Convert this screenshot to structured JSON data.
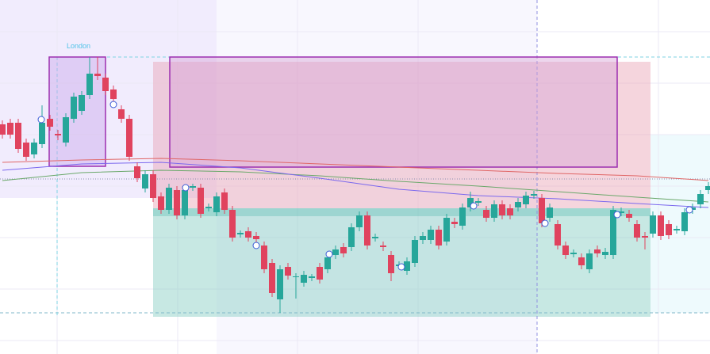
{
  "chart_data": {
    "type": "candlestick",
    "annotation": "London",
    "ylim": [
      0,
      447
    ],
    "up_color": "#26a69a",
    "down_color": "#e0435e",
    "ohlc": [
      [
        290,
        295,
        272,
        277
      ],
      [
        292,
        297,
        272,
        277
      ],
      [
        292,
        297,
        254,
        259
      ],
      [
        267,
        272,
        244,
        249
      ],
      [
        252,
        272,
        247,
        267
      ],
      [
        265,
        314,
        260,
        292
      ],
      [
        297,
        302,
        282,
        287
      ],
      [
        278,
        283,
        270,
        276
      ],
      [
        267,
        304,
        262,
        299
      ],
      [
        297,
        330,
        292,
        325
      ],
      [
        307,
        332,
        302,
        327
      ],
      [
        327,
        375,
        322,
        354
      ],
      [
        354,
        375,
        346,
        351
      ],
      [
        349,
        354,
        327,
        332
      ],
      [
        334,
        339,
        317,
        322
      ],
      [
        309,
        314,
        292,
        297
      ],
      [
        297,
        302,
        244,
        249
      ],
      [
        237,
        242,
        217,
        222
      ],
      [
        209,
        232,
        204,
        227
      ],
      [
        227,
        232,
        192,
        197
      ],
      [
        199,
        204,
        177,
        182
      ],
      [
        182,
        215,
        177,
        210
      ],
      [
        207,
        212,
        170,
        175
      ],
      [
        175,
        212,
        170,
        207
      ],
      [
        210,
        215,
        206,
        212
      ],
      [
        210,
        215,
        172,
        177
      ],
      [
        184,
        190,
        180,
        186
      ],
      [
        179,
        204,
        174,
        199
      ],
      [
        204,
        209,
        177,
        182
      ],
      [
        182,
        187,
        142,
        147
      ],
      [
        151,
        156,
        147,
        153
      ],
      [
        155,
        160,
        142,
        147
      ],
      [
        149,
        154,
        140,
        145
      ],
      [
        137,
        142,
        102,
        107
      ],
      [
        115,
        120,
        72,
        77
      ],
      [
        69,
        112,
        52,
        107
      ],
      [
        110,
        115,
        94,
        99
      ],
      [
        97,
        102,
        70,
        98
      ],
      [
        90,
        105,
        85,
        100
      ],
      [
        96,
        101,
        92,
        98
      ],
      [
        110,
        115,
        89,
        94
      ],
      [
        107,
        127,
        102,
        122
      ],
      [
        125,
        137,
        120,
        132
      ],
      [
        135,
        140,
        122,
        127
      ],
      [
        135,
        165,
        130,
        160
      ],
      [
        160,
        180,
        155,
        175
      ],
      [
        175,
        180,
        132,
        137
      ],
      [
        146,
        152,
        142,
        148
      ],
      [
        137,
        142,
        130,
        135
      ],
      [
        125,
        130,
        92,
        102
      ],
      [
        111,
        117,
        107,
        113
      ],
      [
        105,
        122,
        100,
        117
      ],
      [
        115,
        149,
        110,
        144
      ],
      [
        144,
        154,
        139,
        149
      ],
      [
        144,
        162,
        139,
        157
      ],
      [
        157,
        162,
        132,
        137
      ],
      [
        142,
        177,
        137,
        172
      ],
      [
        167,
        172,
        159,
        164
      ],
      [
        162,
        190,
        157,
        185
      ],
      [
        185,
        205,
        180,
        197
      ],
      [
        191,
        197,
        187,
        193
      ],
      [
        182,
        187,
        167,
        172
      ],
      [
        172,
        194,
        167,
        189
      ],
      [
        189,
        194,
        170,
        175
      ],
      [
        184,
        189,
        170,
        175
      ],
      [
        185,
        197,
        180,
        192
      ],
      [
        189,
        205,
        184,
        200
      ],
      [
        200,
        206,
        196,
        202
      ],
      [
        197,
        202,
        160,
        165
      ],
      [
        172,
        190,
        167,
        185
      ],
      [
        164,
        169,
        132,
        137
      ],
      [
        137,
        142,
        120,
        125
      ],
      [
        126,
        132,
        122,
        128
      ],
      [
        122,
        127,
        107,
        112
      ],
      [
        107,
        132,
        102,
        127
      ],
      [
        132,
        137,
        122,
        127
      ],
      [
        125,
        134,
        120,
        129
      ],
      [
        125,
        187,
        120,
        182
      ],
      [
        178,
        185,
        174,
        180
      ],
      [
        177,
        182,
        167,
        172
      ],
      [
        164,
        169,
        142,
        147
      ],
      [
        149,
        154,
        132,
        147
      ],
      [
        152,
        180,
        147,
        175
      ],
      [
        175,
        180,
        144,
        149
      ],
      [
        164,
        169,
        145,
        150
      ],
      [
        156,
        162,
        152,
        158
      ],
      [
        155,
        184,
        150,
        179
      ],
      [
        182,
        190,
        177,
        185
      ],
      [
        189,
        207,
        184,
        202
      ],
      [
        207,
        217,
        202,
        212
      ]
    ],
    "series": [
      {
        "color": "#e06666",
        "x": [
          1,
          11,
          21,
          31,
          41,
          51,
          61,
          71,
          81,
          90
        ],
        "values": [
          242,
          245,
          247,
          244,
          240,
          236,
          232,
          228,
          225,
          219
        ]
      },
      {
        "color": "#6aa86a",
        "x": [
          1,
          11,
          21,
          31,
          41,
          51,
          61,
          71,
          81,
          90
        ],
        "values": [
          219,
          229,
          232,
          230,
          225,
          218,
          212,
          205,
          198,
          192
        ]
      },
      {
        "color": "#7b68ee",
        "x": [
          1,
          11,
          21,
          31,
          41,
          51,
          61,
          71,
          81,
          90
        ],
        "values": [
          232,
          240,
          242,
          235,
          222,
          208,
          200,
          196,
          190,
          185
        ]
      }
    ]
  }
}
